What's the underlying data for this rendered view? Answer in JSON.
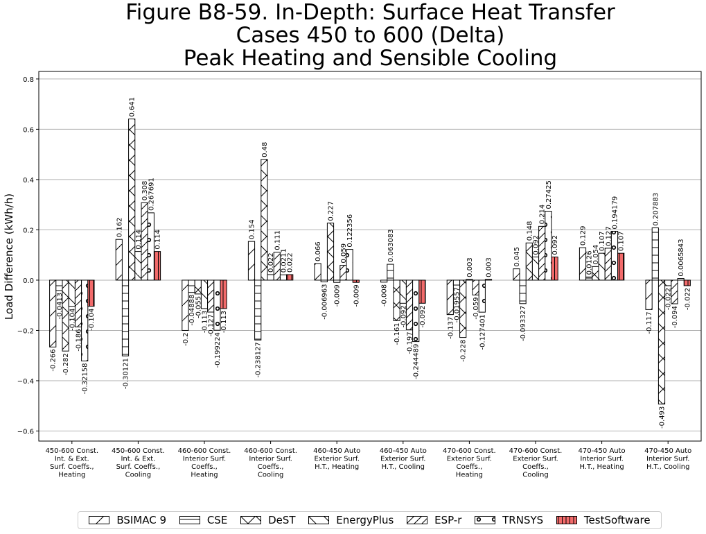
{
  "chart_data": {
    "type": "bar",
    "title": [
      "Figure B8-59. In-Depth: Surface Heat Transfer",
      "Cases 450 to 600 (Delta)",
      "Peak Heating and Sensible Cooling"
    ],
    "ylabel": "Load Difference (kWh/h)",
    "xlabel": "",
    "ylim": [
      -0.64,
      0.83
    ],
    "yticks": [
      -0.6,
      -0.4,
      -0.2,
      0.0,
      0.2,
      0.4,
      0.6,
      0.8
    ],
    "ytick_labels": [
      "−0.6",
      "−0.4",
      "−0.2",
      "0.0",
      "0.2",
      "0.4",
      "0.6",
      "0.8"
    ],
    "grid": "horizontal",
    "legend_position": "bottom",
    "categories": [
      [
        "450-600 Const.",
        "Int. & Ext.",
        "Surf. Coeffs.,",
        "Heating"
      ],
      [
        "450-600 Const.",
        "Int. & Ext.",
        "Surf. Coeffs.,",
        "Cooling"
      ],
      [
        "460-600 Const.",
        "Interior Surf.",
        "Coeffs.,",
        "Heating"
      ],
      [
        "460-600 Const.",
        "Interior Surf.",
        "Coeffs.,",
        "Cooling"
      ],
      [
        "460-450 Auto",
        "Exterior Surf.",
        "H.T., Heating"
      ],
      [
        "460-450 Auto",
        "Exterior Surf.",
        "H.T., Cooling"
      ],
      [
        "470-600 Const.",
        "Exterior Surf.",
        "Coeffs.,",
        "Heating"
      ],
      [
        "470-600 Const.",
        "Exterior Surf.",
        "Coeffs.,",
        "Cooling"
      ],
      [
        "470-450 Auto",
        "Interior Surf.",
        "H.T., Heating"
      ],
      [
        "470-450 Auto",
        "Interior Surf.",
        "H.T., Cooling"
      ]
    ],
    "series": [
      {
        "name": "BSIMAC 9",
        "hatch": "diag-fwd",
        "color": "#ffffff",
        "values": [
          -0.266,
          0.162,
          -0.2,
          0.154,
          0.066,
          -0.008,
          -0.137,
          0.045,
          0.129,
          -0.117
        ],
        "labels": [
          "-0.266",
          "0.162",
          "-0.2",
          "0.154",
          "0.066",
          "-0.008",
          "-0.137",
          "0.045",
          "0.129",
          "-0.117"
        ]
      },
      {
        "name": "CSE",
        "hatch": "horiz",
        "color": "#ffffff",
        "values": [
          -0.0413,
          -0.30121,
          -0.04888,
          -0.238127,
          -0.006963,
          0.063083,
          -0.019557,
          -0.093327,
          0.0126,
          0.207883
        ],
        "labels": [
          "-0.0413",
          "-0.30121",
          "-0.04888",
          "-0.238127",
          "-0.006963",
          "0.063083",
          "-0.019557",
          "-0.093327",
          "0.0126",
          "0.207883"
        ]
      },
      {
        "name": "DeST",
        "hatch": "cross",
        "color": "#ffffff",
        "values": [
          -0.282,
          0.641,
          -0.055,
          0.48,
          0.227,
          -0.161,
          -0.228,
          0.148,
          0.054,
          -0.493
        ],
        "labels": [
          "-0.282",
          "0.641",
          "-0.055",
          "0.48",
          "0.227",
          "-0.161",
          "-0.228",
          "0.148",
          "0.054",
          "-0.493"
        ]
      },
      {
        "name": "EnergyPlus",
        "hatch": "diag-back",
        "color": "#ffffff",
        "values": [
          -0.104,
          0.114,
          -0.113,
          0.022,
          -0.009,
          -0.092,
          0.003,
          0.092,
          0.107,
          -0.022
        ],
        "labels": [
          "-0.104",
          "0.114",
          "-0.113",
          "0.022",
          "-0.009",
          "-0.092",
          "0.003",
          "0.092",
          "0.107",
          "-0.022"
        ]
      },
      {
        "name": "ESP-r",
        "hatch": "diag-dense",
        "color": "#ffffff",
        "values": [
          -0.186,
          0.308,
          -0.127,
          0.111,
          0.059,
          -0.197,
          -0.059,
          0.214,
          0.127,
          -0.094
        ],
        "labels": [
          "-0.186",
          "0.308",
          "-0.127",
          "0.111",
          "0.059",
          "-0.197",
          "-0.059",
          "0.214",
          "0.127",
          "-0.094"
        ]
      },
      {
        "name": "TRNSYS",
        "hatch": "circles",
        "color": "#ffffff",
        "values": [
          -0.32158,
          0.267691,
          -0.199224,
          0.0211,
          0.122356,
          -0.244489,
          -0.127401,
          0.27425,
          0.194179,
          0.0065843
        ],
        "labels": [
          "-0.32158",
          "0.267691",
          "-0.199224",
          "0.0211",
          "0.122356",
          "-0.244489",
          "-0.127401",
          "0.27425",
          "0.194179",
          "0.0065843"
        ]
      },
      {
        "name": "TestSoftware",
        "hatch": "vert",
        "color": "#f26b6b",
        "values": [
          -0.104,
          0.114,
          -0.113,
          0.022,
          -0.009,
          -0.092,
          0.003,
          0.092,
          0.107,
          -0.022
        ],
        "labels": [
          "-0.104",
          "0.114",
          "-0.113",
          "0.022",
          "-0.009",
          "-0.092",
          "0.003",
          "0.092",
          "0.107",
          "-0.022"
        ]
      }
    ]
  }
}
